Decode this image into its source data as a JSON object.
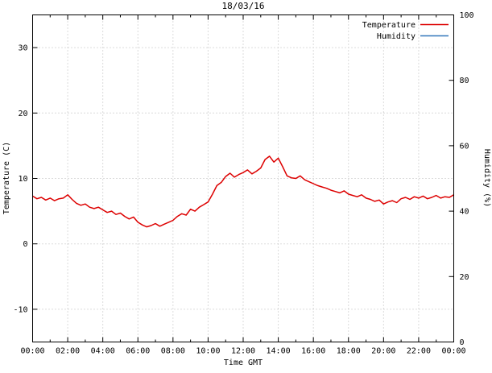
{
  "chart_data": {
    "type": "line",
    "title": "18/03/16",
    "xlabel": "Time GMT",
    "ylabel_left": "Temperature (C)",
    "ylabel_right": "Humidity (%)",
    "xlim_hours": [
      0,
      24
    ],
    "ylim_left": [
      -15,
      35
    ],
    "ylim_right": [
      0,
      100
    ],
    "grid": true,
    "legend_position": "top-right-inside",
    "x_tick_hours": [
      0,
      2,
      4,
      6,
      8,
      10,
      12,
      14,
      16,
      18,
      20,
      22,
      24
    ],
    "x_tick_labels": [
      "00:00",
      "02:00",
      "04:00",
      "06:00",
      "08:00",
      "10:00",
      "12:00",
      "14:00",
      "16:00",
      "18:00",
      "20:00",
      "22:00",
      "00:00"
    ],
    "yticks_left": [
      -10,
      0,
      10,
      20,
      30
    ],
    "yticks_right": [
      0,
      20,
      40,
      60,
      80,
      100
    ],
    "colors": {
      "temperature": "#dd0000",
      "humidity": "#3377bb",
      "grid": "#b8b8b8",
      "axis": "#000000",
      "background": "#ffffff"
    },
    "x_hours": [
      0,
      0.25,
      0.5,
      0.75,
      1,
      1.25,
      1.5,
      1.75,
      2,
      2.25,
      2.5,
      2.75,
      3,
      3.25,
      3.5,
      3.75,
      4,
      4.25,
      4.5,
      4.75,
      5,
      5.25,
      5.5,
      5.75,
      6,
      6.25,
      6.5,
      6.75,
      7,
      7.25,
      7.5,
      7.75,
      8,
      8.25,
      8.5,
      8.75,
      9,
      9.25,
      9.5,
      9.75,
      10,
      10.25,
      10.5,
      10.75,
      11,
      11.25,
      11.5,
      11.75,
      12,
      12.25,
      12.5,
      12.75,
      13,
      13.25,
      13.5,
      13.75,
      14,
      14.25,
      14.5,
      14.75,
      15,
      15.25,
      15.5,
      15.75,
      16,
      16.25,
      16.5,
      16.75,
      17,
      17.25,
      17.5,
      17.75,
      18,
      18.25,
      18.5,
      18.75,
      19,
      19.25,
      19.5,
      19.75,
      20,
      20.25,
      20.5,
      20.75,
      21,
      21.25,
      21.5,
      21.75,
      22,
      22.25,
      22.5,
      22.75,
      23,
      23.25,
      23.5,
      23.75,
      24
    ],
    "series": [
      {
        "name": "Temperature",
        "axis": "left",
        "color": "#dd0000",
        "visible": true,
        "values": [
          7.3,
          6.9,
          7.1,
          6.7,
          7.0,
          6.6,
          6.9,
          7.0,
          7.5,
          6.8,
          6.2,
          5.9,
          6.1,
          5.6,
          5.4,
          5.6,
          5.2,
          4.8,
          5.0,
          4.5,
          4.7,
          4.2,
          3.8,
          4.1,
          3.3,
          2.9,
          2.6,
          2.8,
          3.1,
          2.7,
          3.0,
          3.3,
          3.6,
          4.2,
          4.6,
          4.4,
          5.3,
          5.0,
          5.6,
          6.0,
          6.4,
          7.6,
          8.9,
          9.4,
          10.3,
          10.8,
          10.2,
          10.6,
          10.9,
          11.3,
          10.7,
          11.1,
          11.6,
          12.9,
          13.4,
          12.5,
          13.1,
          11.8,
          10.4,
          10.1,
          10.0,
          10.4,
          9.8,
          9.5,
          9.2,
          8.9,
          8.7,
          8.5,
          8.2,
          8.0,
          7.8,
          8.1,
          7.6,
          7.4,
          7.2,
          7.5,
          7.0,
          6.8,
          6.5,
          6.7,
          6.1,
          6.4,
          6.6,
          6.3,
          6.9,
          7.1,
          6.8,
          7.2,
          7.0,
          7.3,
          6.9,
          7.1,
          7.4,
          7.0,
          7.2,
          7.1,
          7.5
        ]
      },
      {
        "name": "Humidity",
        "axis": "right",
        "color": "#3377bb",
        "visible": false,
        "values": []
      }
    ]
  }
}
